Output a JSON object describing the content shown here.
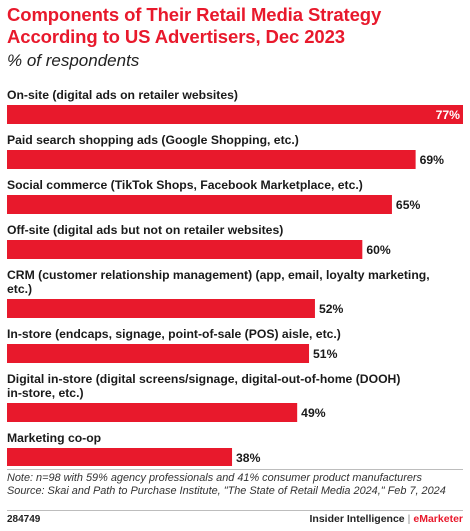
{
  "title": "Components of Their Retail Media Strategy According to US Advertisers, Dec 2023",
  "subtitle": "% of respondents",
  "chart_data": {
    "type": "bar",
    "orientation": "horizontal",
    "categories": [
      [
        "On-site (digital ads on retailer websites)"
      ],
      [
        "Paid search shopping ads (Google Shopping, etc.)"
      ],
      [
        "Social commerce (TikTok Shops, Facebook Marketplace, etc.)"
      ],
      [
        "Off-site (digital ads but not on retailer websites)"
      ],
      [
        "CRM (customer relationship management) (app, email, loyalty marketing,",
        "etc.)"
      ],
      [
        "In-store (endcaps, signage, point-of-sale (POS) aisle, etc.)"
      ],
      [
        "Digital in-store (digital screens/signage, digital-out-of-home (DOOH)",
        "in-store, etc.)"
      ],
      [
        "Marketing co-op"
      ]
    ],
    "values": [
      77,
      69,
      65,
      60,
      52,
      51,
      49,
      38
    ],
    "value_labels": [
      "77%",
      "69%",
      "65%",
      "60%",
      "52%",
      "51%",
      "49%",
      "38%"
    ],
    "xlim": [
      0,
      77
    ],
    "bar_color": "#e8192c",
    "grid": false,
    "legend": "none"
  },
  "notes": {
    "note": "Note: n=98 with 59% agency professionals and 41% consumer product manufacturers",
    "source": "Source: Skai and Path to Purchase Institute, \"The State of Retail Media 2024,\" Feb 7, 2024"
  },
  "footer": {
    "chart_id": "284749",
    "brand_left": "Insider Intelligence",
    "brand_sep": "|",
    "brand_right": "eMarketer"
  }
}
